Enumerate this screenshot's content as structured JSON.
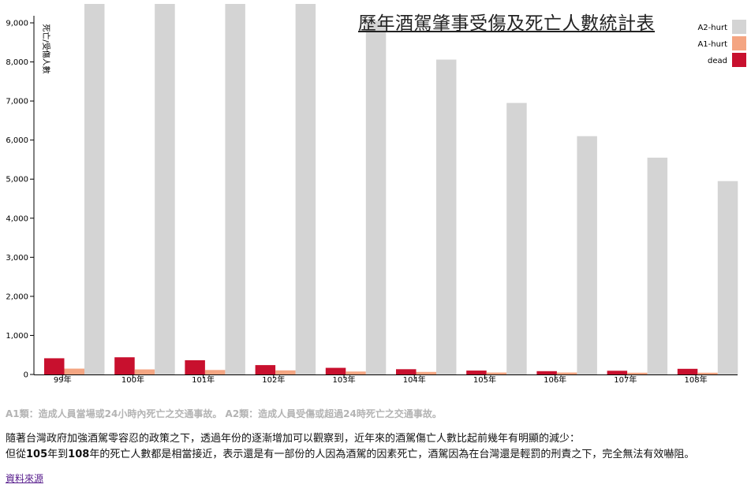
{
  "chart_data": {
    "type": "bar",
    "title": "歷年酒駕肇事受傷及死亡人數統計表",
    "ylabel": "死亡/受傷人數",
    "xlabel": "",
    "categories": [
      "99年",
      "100年",
      "101年",
      "102年",
      "103年",
      "104年",
      "105年",
      "106年",
      "107年",
      "108年"
    ],
    "series": [
      {
        "name": "dead",
        "color": "#c8102e",
        "values": [
          415,
          440,
          365,
          240,
          170,
          135,
          100,
          85,
          95,
          145
        ]
      },
      {
        "name": "A1-hurt",
        "color": "#f4a582",
        "values": [
          150,
          130,
          115,
          105,
          75,
          65,
          50,
          50,
          45,
          45
        ]
      },
      {
        "name": "A2-hurt",
        "color": "#d4d4d4",
        "values": [
          10200,
          10200,
          10200,
          9660,
          9050,
          8060,
          6950,
          6100,
          5550,
          4950
        ]
      }
    ],
    "yticks": [
      0,
      1000,
      2000,
      3000,
      4000,
      5000,
      6000,
      7000,
      8000,
      9000
    ],
    "ytick_labels": [
      "0",
      "1,000",
      "2,000",
      "3,000",
      "4,000",
      "5,000",
      "6,000",
      "7,000",
      "8,000",
      "9,000"
    ],
    "ylim": [
      0,
      9800
    ],
    "legend_order": [
      "A2-hurt",
      "A1-hurt",
      "dead"
    ],
    "legend_position": "top-right",
    "grid": false
  },
  "note": {
    "a1": "A1類：造成人員當場或24小時內死亡之交通事故。",
    "a2": "A2類：造成人員受傷或超過24時死亡之交通事故。"
  },
  "paragraph": {
    "line1": "隨著台灣政府加強酒駕零容忍的政策之下，透過年份的逐漸增加可以觀察到，近年來的酒駕傷亡人數比起前幾年有明顯的減少：",
    "line2_pre": "但從",
    "line2_b1": "105",
    "line2_mid1": "年到",
    "line2_b2": "108",
    "line2_post": "年的死亡人數都是相當接近，表示還是有一部份的人因為酒駕的因素死亡，酒駕因為在台灣還是輕罰的刑責之下，完全無法有效嚇阻。"
  },
  "source_link": "資料來源"
}
